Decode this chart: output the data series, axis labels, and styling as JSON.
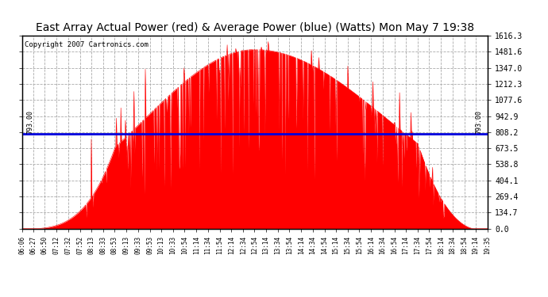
{
  "title": "East Array Actual Power (red) & Average Power (blue) (Watts) Mon May 7 19:38",
  "copyright": "Copyright 2007 Cartronics.com",
  "avg_power": 793.0,
  "y_max": 1616.3,
  "y_min": 0.0,
  "y_ticks": [
    0.0,
    134.7,
    269.4,
    404.1,
    538.8,
    673.5,
    808.2,
    942.9,
    1077.6,
    1212.3,
    1347.0,
    1481.6,
    1616.3
  ],
  "x_labels": [
    "06:06",
    "06:27",
    "06:50",
    "07:12",
    "07:32",
    "07:52",
    "08:13",
    "08:33",
    "08:53",
    "09:13",
    "09:33",
    "09:53",
    "10:13",
    "10:33",
    "10:54",
    "11:14",
    "11:34",
    "11:54",
    "12:14",
    "12:34",
    "12:54",
    "13:14",
    "13:34",
    "13:54",
    "14:14",
    "14:34",
    "14:54",
    "15:14",
    "15:34",
    "15:54",
    "16:14",
    "16:34",
    "16:54",
    "17:14",
    "17:34",
    "17:54",
    "18:14",
    "18:34",
    "18:54",
    "19:14",
    "19:35"
  ],
  "bg_color": "#ffffff",
  "plot_bg_color": "#ffffff",
  "red_color": "#ff0000",
  "blue_color": "#0000dd",
  "grid_color": "#aaaaaa",
  "title_fontsize": 10,
  "copyright_fontsize": 6.5
}
